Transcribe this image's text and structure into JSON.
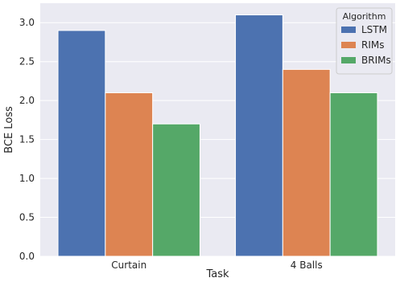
{
  "chart_data": {
    "type": "bar",
    "title": "",
    "xlabel": "Task",
    "ylabel": "BCE Loss",
    "categories": [
      "Curtain",
      "4 Balls"
    ],
    "series": [
      {
        "name": "LSTM",
        "color": "#4c72b0",
        "values": [
          2.9,
          3.1
        ]
      },
      {
        "name": "RIMs",
        "color": "#dd8452",
        "values": [
          2.1,
          2.4
        ]
      },
      {
        "name": "BRIMs",
        "color": "#55a868",
        "values": [
          1.7,
          2.1
        ]
      }
    ],
    "ylim": [
      0,
      3.25
    ],
    "yticks": [
      "0.0",
      "0.5",
      "1.0",
      "1.5",
      "2.0",
      "2.5",
      "3.0"
    ],
    "grid": true,
    "legend": {
      "title": "Algorithm",
      "placement": "top-right"
    },
    "background": "#eaeaf2"
  }
}
